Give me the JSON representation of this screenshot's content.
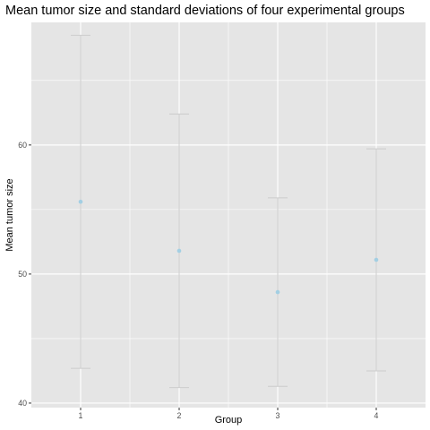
{
  "chart_data": {
    "type": "scatter",
    "title": "Mean tumor size and standard deviations of four experimental groups",
    "xlabel": "Group",
    "ylabel": "Mean tumor size",
    "categories": [
      "1",
      "2",
      "3",
      "4"
    ],
    "series": [
      {
        "values": [
          55.6,
          51.8,
          48.6,
          51.1
        ],
        "error_low": [
          42.7,
          41.2,
          41.3,
          42.5
        ],
        "error_high": [
          68.5,
          62.4,
          55.9,
          59.7
        ]
      }
    ],
    "ylim": [
      39.65,
      69.5
    ],
    "y_ticks": [
      40,
      50,
      60
    ],
    "grid": true,
    "panel_color": "#e5e5e5",
    "grid_color": "#ffffff",
    "point_color": "#a3cfe3",
    "errorbar_color": "#cccccc"
  }
}
